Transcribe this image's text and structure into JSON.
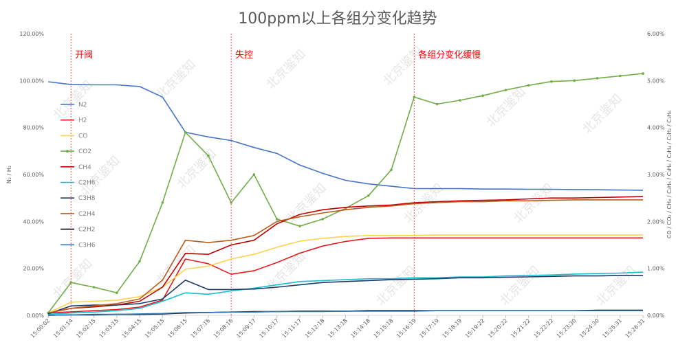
{
  "chart_data": {
    "type": "line",
    "title": "100ppm以上各组分变化趋势",
    "ylabel_left": "N₂ / H₂",
    "ylabel_right": "CO / CO₂ / CH₄ / C₂H₆ / C₃H₈ / C₂H₄ / C₂H₂ / C₃H₆",
    "ylim_left": [
      0,
      120
    ],
    "ylim_right": [
      0,
      6
    ],
    "left_ticks": [
      "0.00%",
      "20.00%",
      "40.00%",
      "60.00%",
      "80.00%",
      "100.00%",
      "120.00%"
    ],
    "right_ticks": [
      "0.00%",
      "1.00%",
      "2.00%",
      "3.00%",
      "4.00%",
      "5.00%",
      "6.00%"
    ],
    "categories": [
      "15:00:02",
      "15:01:14",
      "15:02:15",
      "15:03:15",
      "15:04:15",
      "15:05:15",
      "15:06:15",
      "15:07:16",
      "15:08:16",
      "15:09:17",
      "15:10:17",
      "15:11:17",
      "15:12:18",
      "15:13:18",
      "15:14:18",
      "15:15:18",
      "15:16:19",
      "15:17:19",
      "15:18:19",
      "15:19:22",
      "15:20:22",
      "15:21:22",
      "15:22:22",
      "15:23:30",
      "15:24:30",
      "15:25:31",
      "15:26:31"
    ],
    "annotations": [
      {
        "label": "开阀",
        "x": "15:01:14"
      },
      {
        "label": "失控",
        "x": "15:08:16"
      },
      {
        "label": "各组分变化缓慢",
        "x": "15:16:19"
      }
    ],
    "watermark": "北京鉴知",
    "legend_position": "left-inside",
    "grid": false,
    "series": [
      {
        "name": "N2",
        "axis": "left",
        "color": "#4472c4",
        "values": [
          99.5,
          98.3,
          98.2,
          98.2,
          97.5,
          93.0,
          78.0,
          76.0,
          74.5,
          71.5,
          69.0,
          64.0,
          60.5,
          57.5,
          56.0,
          55.0,
          54.0,
          54.0,
          54.0,
          53.8,
          53.8,
          53.7,
          53.7,
          53.6,
          53.5,
          53.4,
          53.3
        ]
      },
      {
        "name": "H2",
        "axis": "left",
        "color": "#e41a1c",
        "values": [
          1.0,
          1.5,
          2.0,
          2.5,
          3.5,
          6.5,
          24.0,
          22.0,
          17.5,
          19.0,
          22.5,
          26.5,
          29.5,
          31.5,
          32.8,
          33.0,
          33.0,
          33.0,
          33.0,
          33.0,
          33.0,
          33.0,
          33.0,
          33.0,
          33.0,
          33.0,
          33.0
        ]
      },
      {
        "name": "CO",
        "axis": "right",
        "color": "#ffd24d",
        "values": [
          0.05,
          0.28,
          0.3,
          0.32,
          0.4,
          0.6,
          0.98,
          1.05,
          1.2,
          1.3,
          1.45,
          1.58,
          1.64,
          1.68,
          1.7,
          1.7,
          1.7,
          1.71,
          1.71,
          1.71,
          1.71,
          1.71,
          1.71,
          1.71,
          1.71,
          1.71,
          1.71
        ]
      },
      {
        "name": "CO2",
        "axis": "right",
        "color": "#70ad47",
        "values": [
          0.05,
          0.7,
          0.6,
          0.48,
          1.15,
          2.4,
          3.9,
          3.4,
          2.4,
          3.0,
          2.05,
          1.9,
          2.05,
          2.28,
          2.55,
          3.1,
          4.65,
          4.5,
          4.58,
          4.68,
          4.8,
          4.9,
          4.98,
          5.0,
          5.05,
          5.1,
          5.15
        ]
      },
      {
        "name": "CH4",
        "axis": "right",
        "color": "#c00000",
        "values": [
          0.05,
          0.15,
          0.18,
          0.22,
          0.3,
          0.6,
          1.32,
          1.3,
          1.5,
          1.6,
          1.95,
          2.15,
          2.25,
          2.3,
          2.33,
          2.35,
          2.4,
          2.42,
          2.44,
          2.45,
          2.46,
          2.48,
          2.5,
          2.5,
          2.51,
          2.52,
          2.53
        ]
      },
      {
        "name": "C2H6",
        "axis": "right",
        "color": "#17becf",
        "values": [
          0.02,
          0.05,
          0.07,
          0.1,
          0.15,
          0.3,
          0.48,
          0.45,
          0.52,
          0.58,
          0.65,
          0.72,
          0.74,
          0.76,
          0.78,
          0.78,
          0.8,
          0.8,
          0.82,
          0.82,
          0.84,
          0.85,
          0.86,
          0.88,
          0.89,
          0.9,
          0.92
        ]
      },
      {
        "name": "C3H8",
        "axis": "right",
        "color": "#1f3864",
        "values": [
          0.03,
          0.2,
          0.22,
          0.22,
          0.25,
          0.35,
          0.75,
          0.55,
          0.55,
          0.56,
          0.6,
          0.65,
          0.7,
          0.72,
          0.74,
          0.76,
          0.77,
          0.78,
          0.8,
          0.8,
          0.81,
          0.82,
          0.83,
          0.84,
          0.84,
          0.85,
          0.85
        ]
      },
      {
        "name": "C2H4",
        "axis": "right",
        "color": "#b85c1a",
        "values": [
          0.05,
          0.15,
          0.2,
          0.25,
          0.35,
          0.75,
          1.6,
          1.55,
          1.6,
          1.7,
          2.0,
          2.1,
          2.18,
          2.25,
          2.3,
          2.33,
          2.38,
          2.4,
          2.42,
          2.42,
          2.44,
          2.44,
          2.45,
          2.46,
          2.46,
          2.46,
          2.46
        ]
      },
      {
        "name": "C2H2",
        "axis": "right",
        "color": "#000000",
        "values": [
          0.0,
          0.01,
          0.01,
          0.02,
          0.02,
          0.03,
          0.05,
          0.06,
          0.07,
          0.08,
          0.08,
          0.09,
          0.09,
          0.09,
          0.1,
          0.1,
          0.1,
          0.1,
          0.1,
          0.1,
          0.1,
          0.1,
          0.1,
          0.1,
          0.11,
          0.11,
          0.11
        ]
      },
      {
        "name": "C3H6",
        "axis": "right",
        "color": "#2e75b6",
        "values": [
          0.0,
          0.01,
          0.02,
          0.02,
          0.03,
          0.04,
          0.06,
          0.06,
          0.07,
          0.07,
          0.08,
          0.08,
          0.08,
          0.09,
          0.09,
          0.09,
          0.09,
          0.1,
          0.1,
          0.1,
          0.1,
          0.1,
          0.1,
          0.1,
          0.1,
          0.1,
          0.1
        ]
      }
    ]
  }
}
